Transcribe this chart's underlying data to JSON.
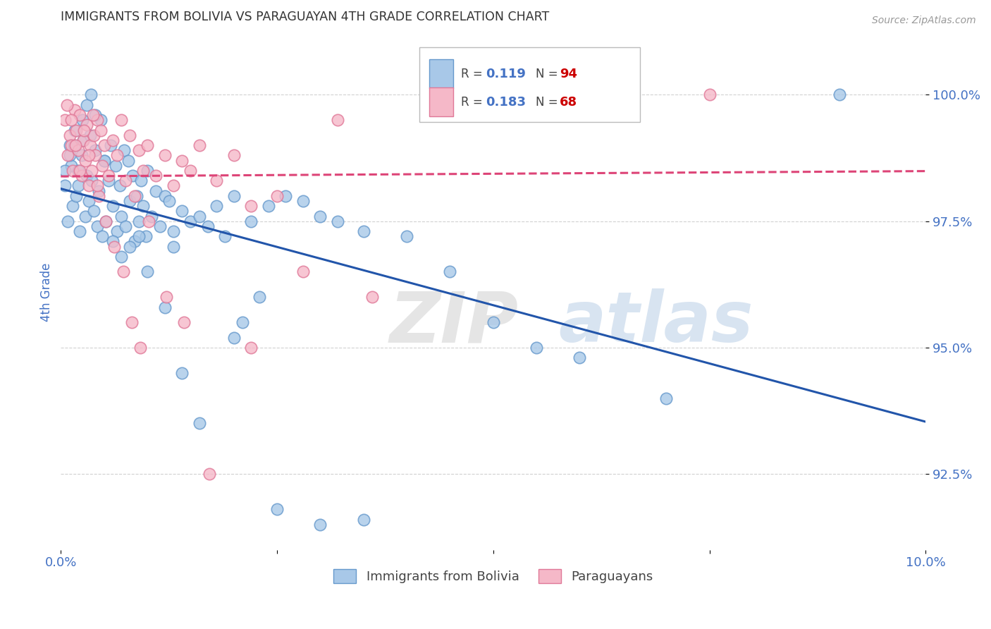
{
  "title": "IMMIGRANTS FROM BOLIVIA VS PARAGUAYAN 4TH GRADE CORRELATION CHART",
  "source": "Source: ZipAtlas.com",
  "ylabel": "4th Grade",
  "watermark_zip": "ZIP",
  "watermark_atlas": "atlas",
  "xlim": [
    0.0,
    10.0
  ],
  "ylim": [
    91.0,
    101.2
  ],
  "yticks": [
    92.5,
    95.0,
    97.5,
    100.0
  ],
  "xticks": [
    0.0,
    2.5,
    5.0,
    7.5,
    10.0
  ],
  "xtick_labels": [
    "0.0%",
    "",
    "",
    "",
    "10.0%"
  ],
  "ytick_labels": [
    "92.5%",
    "95.0%",
    "97.5%",
    "100.0%"
  ],
  "series1_label": "Immigrants from Bolivia",
  "series1_R": "0.119",
  "series1_N": "94",
  "series1_color": "#a8c8e8",
  "series1_edge": "#6699cc",
  "series2_label": "Paraguayans",
  "series2_R": "0.183",
  "series2_N": "68",
  "series2_color": "#f5b8c8",
  "series2_edge": "#e07898",
  "trend1_color": "#2255aa",
  "trend2_color": "#dd4477",
  "background_color": "#ffffff",
  "title_color": "#333333",
  "tick_label_color": "#4472c4",
  "grid_color": "#cccccc",
  "R_color": "#4472c4",
  "N_color": "#cc0000",
  "bolivia_x": [
    0.05,
    0.08,
    0.1,
    0.12,
    0.14,
    0.16,
    0.18,
    0.2,
    0.22,
    0.24,
    0.26,
    0.28,
    0.3,
    0.32,
    0.34,
    0.36,
    0.38,
    0.4,
    0.42,
    0.44,
    0.46,
    0.48,
    0.5,
    0.52,
    0.55,
    0.58,
    0.6,
    0.63,
    0.65,
    0.68,
    0.7,
    0.73,
    0.75,
    0.78,
    0.8,
    0.83,
    0.85,
    0.88,
    0.9,
    0.93,
    0.95,
    0.98,
    1.0,
    1.05,
    1.1,
    1.15,
    1.2,
    1.25,
    1.3,
    1.4,
    1.5,
    1.6,
    1.7,
    1.8,
    1.9,
    2.0,
    2.2,
    2.4,
    2.6,
    2.8,
    3.0,
    3.2,
    3.5,
    4.0,
    4.5,
    5.0,
    5.5,
    6.0,
    7.0,
    9.0,
    0.05,
    0.1,
    0.15,
    0.2,
    0.25,
    0.3,
    0.35,
    0.4,
    0.5,
    0.6,
    0.7,
    0.8,
    0.9,
    1.0,
    1.2,
    1.4,
    1.6,
    2.0,
    2.5,
    3.0,
    3.5,
    2.3,
    2.1,
    1.3
  ],
  "bolivia_y": [
    98.2,
    97.5,
    99.0,
    98.6,
    97.8,
    99.3,
    98.0,
    98.5,
    97.3,
    98.8,
    99.1,
    97.6,
    98.4,
    97.9,
    99.2,
    98.3,
    97.7,
    98.9,
    97.4,
    98.1,
    99.5,
    97.2,
    98.7,
    97.5,
    98.3,
    99.0,
    97.8,
    98.6,
    97.3,
    98.2,
    97.6,
    98.9,
    97.4,
    98.7,
    97.9,
    98.4,
    97.1,
    98.0,
    97.5,
    98.3,
    97.8,
    97.2,
    98.5,
    97.6,
    98.1,
    97.4,
    98.0,
    97.9,
    97.3,
    97.7,
    97.5,
    97.6,
    97.4,
    97.8,
    97.2,
    98.0,
    97.5,
    97.8,
    98.0,
    97.9,
    97.6,
    97.5,
    97.3,
    97.2,
    96.5,
    95.5,
    95.0,
    94.8,
    94.0,
    100.0,
    98.5,
    98.8,
    99.0,
    98.2,
    99.5,
    99.8,
    100.0,
    99.6,
    98.7,
    97.1,
    96.8,
    97.0,
    97.2,
    96.5,
    95.8,
    94.5,
    93.5,
    95.2,
    91.8,
    91.5,
    91.6,
    96.0,
    95.5,
    97.0
  ],
  "paraguay_x": [
    0.05,
    0.08,
    0.1,
    0.12,
    0.14,
    0.16,
    0.18,
    0.2,
    0.22,
    0.24,
    0.26,
    0.28,
    0.3,
    0.32,
    0.34,
    0.36,
    0.38,
    0.4,
    0.42,
    0.44,
    0.46,
    0.48,
    0.5,
    0.55,
    0.6,
    0.65,
    0.7,
    0.75,
    0.8,
    0.85,
    0.9,
    0.95,
    1.0,
    1.1,
    1.2,
    1.3,
    1.4,
    1.5,
    1.6,
    1.8,
    2.0,
    2.2,
    2.5,
    2.8,
    3.2,
    3.6,
    4.5,
    5.5,
    6.5,
    7.5,
    0.07,
    0.12,
    0.17,
    0.22,
    0.27,
    0.32,
    0.37,
    0.42,
    0.52,
    0.62,
    0.72,
    0.82,
    0.92,
    1.02,
    1.22,
    1.42,
    1.72,
    2.2
  ],
  "paraguay_y": [
    99.5,
    98.8,
    99.2,
    99.0,
    98.5,
    99.7,
    99.3,
    98.9,
    99.6,
    98.4,
    99.1,
    98.7,
    99.4,
    98.2,
    99.0,
    98.5,
    99.2,
    98.8,
    99.5,
    98.0,
    99.3,
    98.6,
    99.0,
    98.4,
    99.1,
    98.8,
    99.5,
    98.3,
    99.2,
    98.0,
    98.9,
    98.5,
    99.0,
    98.4,
    98.8,
    98.2,
    98.7,
    98.5,
    99.0,
    98.3,
    98.8,
    97.8,
    98.0,
    96.5,
    99.5,
    96.0,
    100.0,
    100.0,
    100.0,
    100.0,
    99.8,
    99.5,
    99.0,
    98.5,
    99.3,
    98.8,
    99.6,
    98.2,
    97.5,
    97.0,
    96.5,
    95.5,
    95.0,
    97.5,
    96.0,
    95.5,
    92.5,
    95.0
  ]
}
